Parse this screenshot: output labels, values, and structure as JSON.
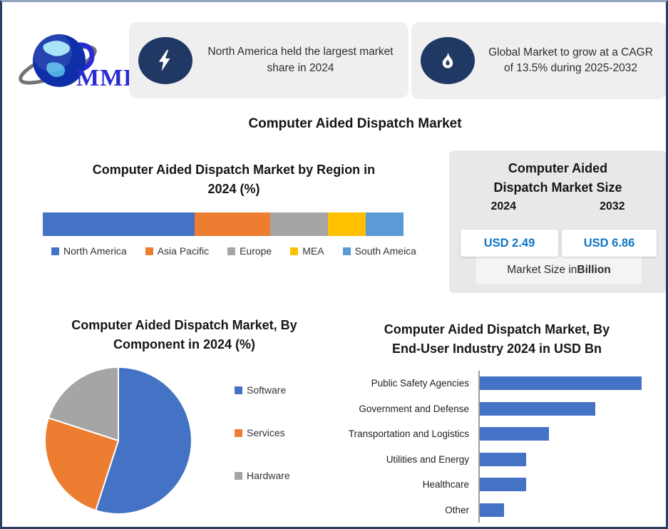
{
  "logo": {
    "text": "MMR"
  },
  "header_callouts": [
    {
      "icon": "lightning-icon",
      "text": "North America held the largest market share in 2024"
    },
    {
      "icon": "flame-icon",
      "text": "Global Market to grow at a CAGR of 13.5% during 2025-2032"
    }
  ],
  "main_title": "Computer Aided Dispatch Market",
  "market_size_panel": {
    "title": "Computer Aided\nDispatch Market Size",
    "year_start": "2024",
    "year_end": "2032",
    "value_start": "USD 2.49",
    "value_end": "USD 6.86",
    "value_color": "#0E76C4",
    "footnote_prefix": "Market Size in ",
    "footnote_bold": "Billion"
  },
  "chart_data": [
    {
      "id": "region_share",
      "type": "bar",
      "variant": "stacked-horizontal",
      "title": "Computer Aided Dispatch Market by Region in\n2024 (%)",
      "categories": [
        "North America",
        "Asia Pacific",
        "Europe",
        "MEA",
        "South Ameica"
      ],
      "values": [
        42,
        21,
        16,
        10.5,
        10.5
      ],
      "unit": "%",
      "colors": [
        "#4472C4",
        "#ED7D31",
        "#A5A5A5",
        "#FFC000",
        "#5B9BD5"
      ],
      "legend_position": "bottom",
      "grid": false
    },
    {
      "id": "component_share",
      "type": "pie",
      "title": "Computer Aided Dispatch Market, By\nComponent in 2024 (%)",
      "categories": [
        "Software",
        "Services",
        "Hardware"
      ],
      "values": [
        55,
        25,
        20
      ],
      "unit": "%",
      "colors": [
        "#4472C4",
        "#ED7D31",
        "#A5A5A5"
      ],
      "start_angle_deg": 0,
      "direction": "clockwise",
      "legend_position": "right"
    },
    {
      "id": "end_user",
      "type": "bar",
      "variant": "horizontal",
      "title": "Computer Aided Dispatch Market, By\nEnd-User Industry 2024 in USD Bn",
      "categories": [
        "Public Safety Agencies",
        "Government and Defense",
        "Transportation and Logistics",
        "Utilities and Energy",
        "Healthcare",
        "Other"
      ],
      "values": [
        0.87,
        0.62,
        0.37,
        0.25,
        0.25,
        0.13
      ],
      "unit": "USD Bn",
      "bar_color": "#4472C4",
      "xlim": [
        0,
        0.95
      ],
      "grid": false,
      "legend_position": "none"
    }
  ],
  "colors": {
    "callout_icon_bg": "#1F3864",
    "callout_bg": "#EFEFEF",
    "panel_bg": "#E8E8E8",
    "page_border": "#2C3D63",
    "page_border_top": "#93A5C1",
    "axis_line": "#9d9d9d"
  }
}
